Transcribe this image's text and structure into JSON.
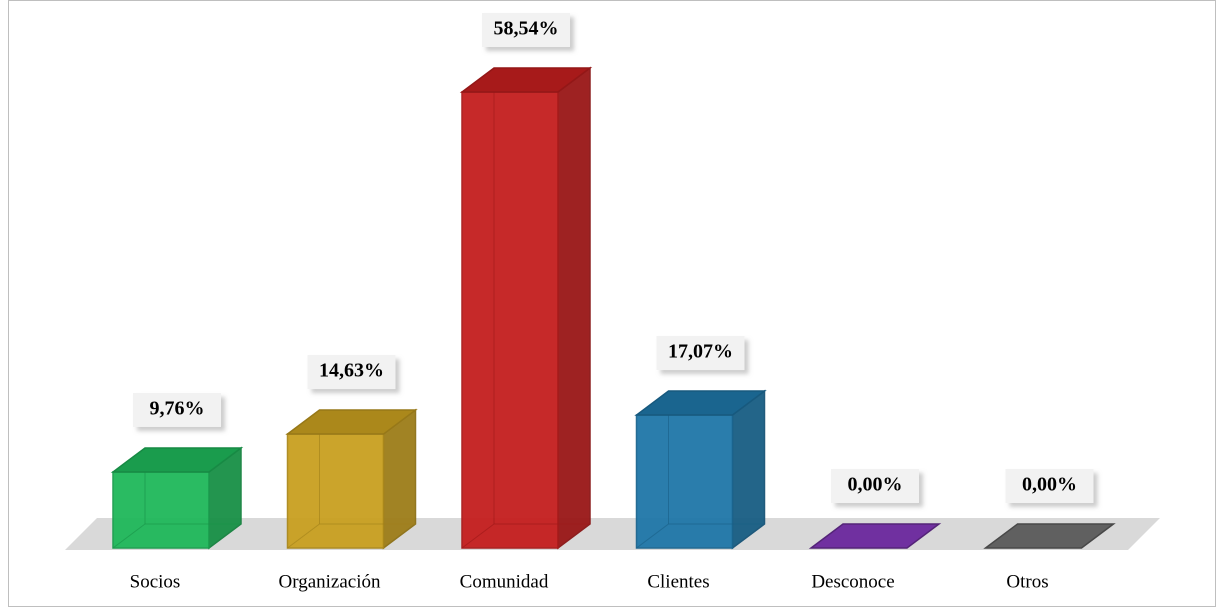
{
  "chart_data": {
    "type": "bar3d",
    "categories": [
      "Socios",
      "Organización",
      "Comunidad",
      "Clientes",
      "Desconoce",
      "Otros"
    ],
    "values": [
      9.76,
      14.63,
      58.54,
      17.07,
      0.0,
      0.0
    ],
    "value_labels": [
      "9,76%",
      "14,63%",
      "58,54%",
      "17,07%",
      "0,00%",
      "0,00%"
    ],
    "colors": [
      "#1fb85a",
      "#c9a020",
      "#c41e1e",
      "#1f77a8",
      "#7030a0",
      "#606060"
    ]
  }
}
